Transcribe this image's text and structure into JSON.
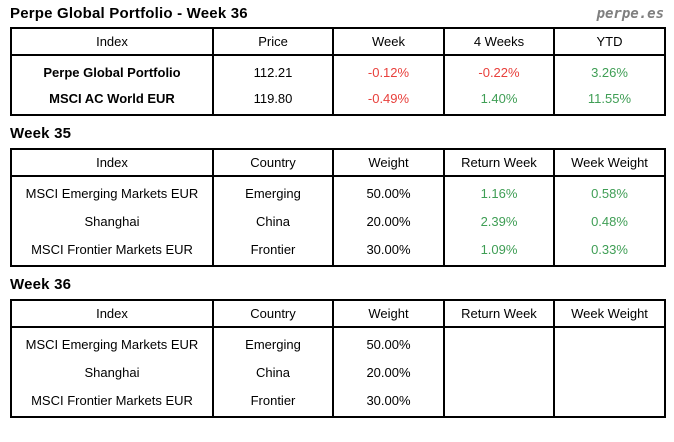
{
  "header": {
    "title": "Perpe Global Portfolio - Week 36",
    "brand": "perpe.es"
  },
  "colors": {
    "negative": "#e8403c",
    "positive": "#3f9e55",
    "brand": "#7f7f7f",
    "border": "#000000",
    "text": "#000000"
  },
  "summary_table": {
    "columns": [
      "Index",
      "Price",
      "Week",
      "4 Weeks",
      "YTD"
    ],
    "rows": [
      {
        "index": "Perpe Global Portfolio",
        "price": "112.21",
        "week": {
          "text": "-0.12%",
          "tone": "neg"
        },
        "four_weeks": {
          "text": "-0.22%",
          "tone": "neg"
        },
        "ytd": {
          "text": "3.26%",
          "tone": "pos"
        }
      },
      {
        "index": "MSCI AC World EUR",
        "price": "119.80",
        "week": {
          "text": "-0.49%",
          "tone": "neg"
        },
        "four_weeks": {
          "text": "1.40%",
          "tone": "pos"
        },
        "ytd": {
          "text": "11.55%",
          "tone": "pos"
        }
      }
    ]
  },
  "week35": {
    "heading": "Week 35",
    "columns": [
      "Index",
      "Country",
      "Weight",
      "Return Week",
      "Week Weight"
    ],
    "rows": [
      {
        "index": "MSCI Emerging Markets EUR",
        "country": "Emerging",
        "weight": "50.00%",
        "return_week": {
          "text": "1.16%",
          "tone": "pos"
        },
        "week_weight": {
          "text": "0.58%",
          "tone": "pos"
        }
      },
      {
        "index": "Shanghai",
        "country": "China",
        "weight": "20.00%",
        "return_week": {
          "text": "2.39%",
          "tone": "pos"
        },
        "week_weight": {
          "text": "0.48%",
          "tone": "pos"
        }
      },
      {
        "index": "MSCI Frontier Markets EUR",
        "country": "Frontier",
        "weight": "30.00%",
        "return_week": {
          "text": "1.09%",
          "tone": "pos"
        },
        "week_weight": {
          "text": "0.33%",
          "tone": "pos"
        }
      }
    ]
  },
  "week36": {
    "heading": "Week 36",
    "columns": [
      "Index",
      "Country",
      "Weight",
      "Return Week",
      "Week Weight"
    ],
    "rows": [
      {
        "index": "MSCI Emerging Markets EUR",
        "country": "Emerging",
        "weight": "50.00%",
        "return_week": {
          "text": "",
          "tone": ""
        },
        "week_weight": {
          "text": "",
          "tone": ""
        }
      },
      {
        "index": "Shanghai",
        "country": "China",
        "weight": "20.00%",
        "return_week": {
          "text": "",
          "tone": ""
        },
        "week_weight": {
          "text": "",
          "tone": ""
        }
      },
      {
        "index": "MSCI Frontier Markets EUR",
        "country": "Frontier",
        "weight": "30.00%",
        "return_week": {
          "text": "",
          "tone": ""
        },
        "week_weight": {
          "text": "",
          "tone": ""
        }
      }
    ]
  }
}
